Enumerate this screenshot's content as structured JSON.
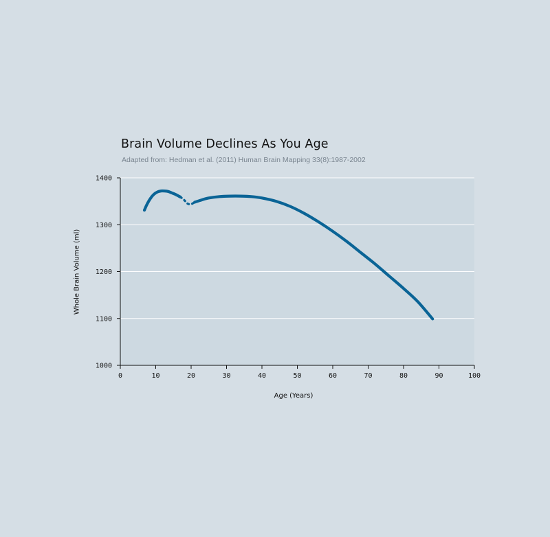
{
  "chart_data": {
    "type": "line",
    "title": "Brain Volume Declines As You Age",
    "subtitle": "Adapted from: Hedman et al. (2011) Human Brain Mapping 33(8):1987-2002",
    "xlabel": "Age (Years)",
    "ylabel": "Whole Brain Volume (ml)",
    "xlim": [
      0,
      100
    ],
    "ylim": [
      1000,
      1400
    ],
    "xticks": [
      0,
      10,
      20,
      30,
      40,
      50,
      60,
      70,
      80,
      90,
      100
    ],
    "yticks": [
      1000,
      1100,
      1200,
      1300,
      1400
    ],
    "grid": "horizontal",
    "color": "#0a6496",
    "series": [
      {
        "style": "solid",
        "x": [
          6.8,
          7.5,
          8.5,
          9.5,
          10.5,
          11.5,
          12.5,
          13.5,
          14.5,
          15.5,
          16.5,
          17.0
        ],
        "y": [
          1331,
          1343,
          1356,
          1365,
          1370,
          1372,
          1372,
          1371,
          1368,
          1365,
          1361,
          1359
        ]
      },
      {
        "style": "dotted",
        "x": [
          17.0,
          18.0,
          19.0,
          20.0,
          21.0
        ],
        "y": [
          1359,
          1353,
          1345,
          1344,
          1348
        ]
      },
      {
        "style": "solid",
        "x": [
          21.0,
          23,
          25,
          28,
          31,
          34,
          37,
          40,
          44,
          48,
          52,
          56,
          60,
          64,
          68,
          72,
          76,
          80,
          84,
          88.2
        ],
        "y": [
          1348,
          1353,
          1357,
          1360,
          1361,
          1361,
          1360,
          1357,
          1350,
          1339,
          1324,
          1306,
          1286,
          1264,
          1240,
          1216,
          1190,
          1164,
          1136,
          1099
        ]
      }
    ]
  }
}
